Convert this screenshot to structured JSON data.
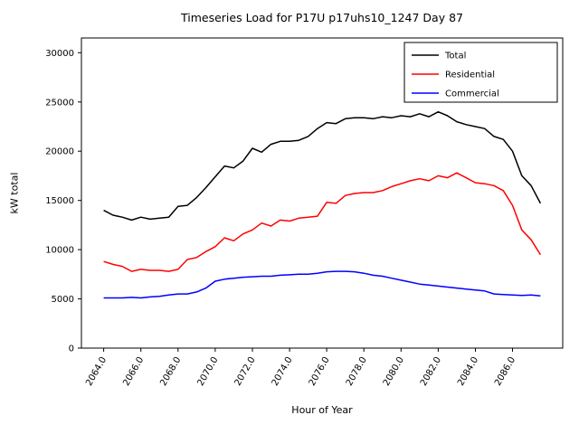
{
  "figure": {
    "title": "Timeseries Load for P17U p17uhs10_1247  Day 87",
    "xlabel": "Hour of Year",
    "ylabel": "kW total"
  },
  "chart_data": {
    "type": "line",
    "title": "Timeseries Load for P17U p17uhs10_1247  Day 87",
    "xlabel": "Hour of Year",
    "ylabel": "kW total",
    "grid": false,
    "legend_position": "upper right",
    "xlim": [
      2062.8,
      2088.7
    ],
    "ylim": [
      0,
      31500
    ],
    "x_ticks": [
      2064,
      2066,
      2068,
      2070,
      2072,
      2074,
      2076,
      2078,
      2080,
      2082,
      2084,
      2086
    ],
    "x_tick_labels": [
      "2064.0",
      "2066.0",
      "2068.0",
      "2070.0",
      "2072.0",
      "2074.0",
      "2076.0",
      "2078.0",
      "2080.0",
      "2082.0",
      "2084.0",
      "2086.0"
    ],
    "y_ticks": [
      0,
      5000,
      10000,
      15000,
      20000,
      25000,
      30000
    ],
    "x": [
      2064.0,
      2064.5,
      2065.0,
      2065.5,
      2066.0,
      2066.5,
      2067.0,
      2067.5,
      2068.0,
      2068.5,
      2069.0,
      2069.5,
      2070.0,
      2070.5,
      2071.0,
      2071.5,
      2072.0,
      2072.5,
      2073.0,
      2073.5,
      2074.0,
      2074.5,
      2075.0,
      2075.5,
      2076.0,
      2076.5,
      2077.0,
      2077.5,
      2078.0,
      2078.5,
      2079.0,
      2079.5,
      2080.0,
      2080.5,
      2081.0,
      2081.5,
      2082.0,
      2082.5,
      2083.0,
      2083.5,
      2084.0,
      2084.5,
      2085.0,
      2085.5,
      2086.0,
      2086.5,
      2087.0,
      2087.5
    ],
    "series": [
      {
        "name": "Total",
        "color": "#000000",
        "values": [
          14000,
          13500,
          13300,
          13000,
          13300,
          13100,
          13200,
          13300,
          14400,
          14500,
          15300,
          16300,
          17400,
          18500,
          18300,
          19000,
          20300,
          19900,
          20700,
          21000,
          21000,
          21100,
          21500,
          22300,
          22900,
          22800,
          23300,
          23400,
          23400,
          23300,
          23500,
          23400,
          23600,
          23500,
          23800,
          23500,
          24000,
          23600,
          23000,
          22700,
          22500,
          22300,
          21500,
          21200,
          20000,
          17500,
          16500,
          14700
        ]
      },
      {
        "name": "Residential",
        "color": "#ff0000",
        "values": [
          8800,
          8500,
          8300,
          7800,
          8000,
          7900,
          7900,
          7800,
          8000,
          9000,
          9200,
          9800,
          10300,
          11200,
          10900,
          11600,
          12000,
          12700,
          12400,
          13000,
          12900,
          13200,
          13300,
          13400,
          14800,
          14700,
          15500,
          15700,
          15800,
          15800,
          16000,
          16400,
          16700,
          17000,
          17200,
          17000,
          17500,
          17300,
          17800,
          17300,
          16800,
          16700,
          16500,
          16000,
          14500,
          12000,
          11000,
          9500
        ]
      },
      {
        "name": "Commercial",
        "color": "#0000ff",
        "values": [
          5100,
          5100,
          5100,
          5150,
          5100,
          5200,
          5250,
          5400,
          5500,
          5500,
          5700,
          6100,
          6800,
          7000,
          7100,
          7200,
          7250,
          7300,
          7300,
          7400,
          7450,
          7500,
          7500,
          7600,
          7750,
          7800,
          7800,
          7750,
          7600,
          7400,
          7300,
          7100,
          6900,
          6700,
          6500,
          6400,
          6300,
          6200,
          6100,
          6000,
          5900,
          5800,
          5500,
          5450,
          5400,
          5350,
          5400,
          5300
        ]
      }
    ]
  }
}
